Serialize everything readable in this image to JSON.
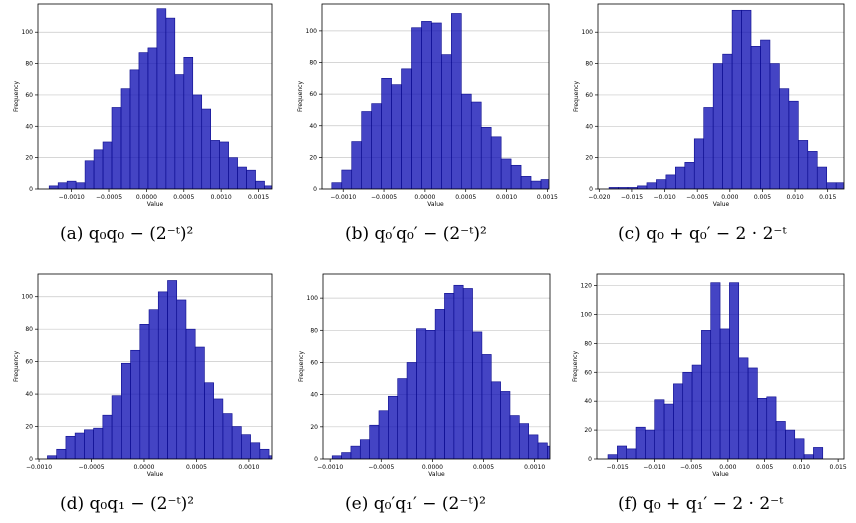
{
  "chart_data": [
    {
      "type": "bar",
      "caption": "(a) q₀q₀ − (2⁻ᵗ)²",
      "xlabel": "Value",
      "ylabel": "Frequency",
      "xlim": [
        -0.00145,
        0.00168
      ],
      "ylim": [
        0,
        118
      ],
      "xticks": [
        -0.001,
        -0.0005,
        0.0,
        0.0005,
        0.001,
        0.0015
      ],
      "xtick_labels": [
        "−0.0010",
        "−0.0005",
        "0.0000",
        "0.0005",
        "0.0010",
        "0.0015"
      ],
      "yticks": [
        0,
        20,
        40,
        60,
        80,
        100
      ],
      "bin_start": -0.0013,
      "bin_width": 0.00012,
      "values": [
        2,
        4,
        5,
        4,
        18,
        25,
        30,
        52,
        64,
        76,
        87,
        90,
        115,
        109,
        73,
        84,
        60,
        51,
        31,
        30,
        20,
        14,
        12,
        5,
        2,
        1,
        2
      ],
      "color": "#0f0fb4"
    },
    {
      "type": "bar",
      "caption": "(b) q₀′q₀′ − (2⁻ᵗ)²",
      "xlabel": "Value",
      "ylabel": "Frequency",
      "xlim": [
        -0.00126,
        0.00152
      ],
      "ylim": [
        0,
        117
      ],
      "xticks": [
        -0.001,
        -0.0005,
        0.0,
        0.0005,
        0.001,
        0.0015
      ],
      "xtick_labels": [
        "−0.0010",
        "−0.0005",
        "0.0000",
        "0.0005",
        "0.0010",
        "0.0015"
      ],
      "yticks": [
        0,
        20,
        40,
        60,
        80,
        100
      ],
      "bin_start": -0.00114,
      "bin_width": 0.000122,
      "values": [
        4,
        12,
        30,
        49,
        54,
        70,
        66,
        76,
        102,
        106,
        105,
        85,
        111,
        60,
        55,
        39,
        33,
        19,
        15,
        8,
        5,
        6,
        3
      ],
      "color": "#0f0fb4"
    },
    {
      "type": "bar",
      "caption": "(c) q₀ + q₀′ − 2 · 2⁻ᵗ",
      "xlabel": "Value",
      "ylabel": "Frequency",
      "xlim": [
        -0.0202,
        0.0175
      ],
      "ylim": [
        0,
        118
      ],
      "xticks": [
        -0.02,
        -0.015,
        -0.01,
        -0.005,
        0.0,
        0.005,
        0.01,
        0.015
      ],
      "xtick_labels": [
        "−0.020",
        "−0.015",
        "−0.010",
        "−0.005",
        "0.000",
        "0.005",
        "0.010",
        "0.015"
      ],
      "yticks": [
        0,
        20,
        40,
        60,
        80,
        100
      ],
      "bin_start": -0.0185,
      "bin_width": 0.00145,
      "values": [
        1,
        1,
        1,
        2,
        4,
        6,
        9,
        14,
        17,
        32,
        52,
        80,
        86,
        114,
        114,
        91,
        95,
        80,
        64,
        56,
        31,
        24,
        14,
        4,
        4,
        3
      ],
      "color": "#0f0fb4"
    },
    {
      "type": "bar",
      "caption": "(d) q₀q₁ − (2⁻ᵗ)²",
      "xlabel": "Value",
      "ylabel": "Frequency",
      "xlim": [
        -0.00101,
        0.00122
      ],
      "ylim": [
        0,
        114
      ],
      "xticks": [
        -0.001,
        -0.0005,
        0.0,
        0.0005,
        0.001
      ],
      "xtick_labels": [
        "−0.0010",
        "−0.0005",
        "0.0000",
        "0.0005",
        "0.0010"
      ],
      "yticks": [
        0,
        20,
        40,
        60,
        80,
        100
      ],
      "bin_start": -0.00092,
      "bin_width": 8.8e-05,
      "values": [
        2,
        6,
        14,
        16,
        18,
        19,
        27,
        39,
        59,
        67,
        83,
        92,
        103,
        110,
        98,
        80,
        69,
        47,
        37,
        28,
        20,
        15,
        10,
        6,
        2,
        1
      ],
      "color": "#0f0fb4"
    },
    {
      "type": "bar",
      "caption": "(e) q₀′q₁′ − (2⁻ᵗ)²",
      "xlabel": "Value",
      "ylabel": "Frequency",
      "xlim": [
        -0.00107,
        0.00115
      ],
      "ylim": [
        0,
        115
      ],
      "xticks": [
        -0.001,
        -0.0005,
        0.0,
        0.0005,
        0.001
      ],
      "xtick_labels": [
        "−0.0010",
        "−0.0005",
        "0.0000",
        "0.0005",
        "0.0010"
      ],
      "yticks": [
        0,
        20,
        40,
        60,
        80,
        100
      ],
      "bin_start": -0.00098,
      "bin_width": 9.15e-05,
      "values": [
        2,
        4,
        8,
        12,
        21,
        30,
        39,
        50,
        60,
        81,
        80,
        93,
        103,
        108,
        106,
        79,
        65,
        48,
        42,
        27,
        22,
        15,
        10,
        8,
        6,
        3,
        1
      ],
      "color": "#0f0fb4"
    },
    {
      "type": "bar",
      "caption": "(f) q₀ + q₁′ − 2 · 2⁻ᵗ",
      "xlabel": "Value",
      "ylabel": "Frequency",
      "xlim": [
        -0.0178,
        0.0158
      ],
      "ylim": [
        0,
        128
      ],
      "xticks": [
        -0.015,
        -0.01,
        -0.005,
        0.0,
        0.005,
        0.01,
        0.015
      ],
      "xtick_labels": [
        "−0.015",
        "−0.010",
        "−0.005",
        "0.000",
        "0.005",
        "0.010",
        "0.015"
      ],
      "yticks": [
        0,
        20,
        40,
        60,
        80,
        100,
        120
      ],
      "bin_start": -0.0163,
      "bin_width": 0.00127,
      "values": [
        3,
        9,
        7,
        22,
        20,
        41,
        38,
        52,
        60,
        65,
        89,
        122,
        90,
        122,
        70,
        63,
        42,
        43,
        26,
        20,
        14,
        3,
        8
      ],
      "color": "#0f0fb4"
    }
  ]
}
